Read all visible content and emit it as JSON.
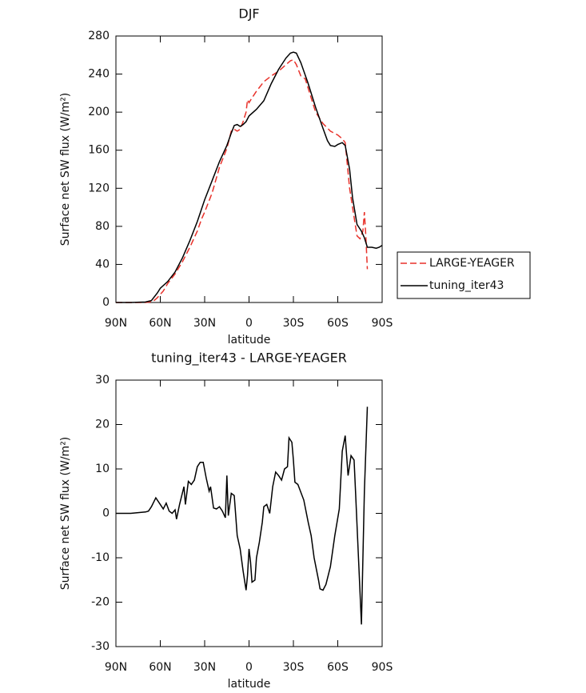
{
  "chart_data": [
    {
      "type": "line",
      "title": "DJF",
      "xlabel": "latitude",
      "ylabel": "Surface net SW flux (W/m²)",
      "xlim": [
        90,
        -90
      ],
      "ylim": [
        0,
        280
      ],
      "xticks": [
        {
          "value": 90,
          "label": "90N"
        },
        {
          "value": 60,
          "label": "60N"
        },
        {
          "value": 30,
          "label": "30N"
        },
        0,
        {
          "value": -30,
          "label": "30S"
        },
        {
          "value": -60,
          "label": "60S"
        },
        {
          "value": -90,
          "label": "90S"
        }
      ],
      "yticks": [
        0,
        40,
        80,
        120,
        160,
        200,
        240,
        280
      ],
      "legend": "right",
      "series": [
        {
          "name": "LARGE-YEAGER",
          "color": "#e8312a",
          "dash": true,
          "x": [
            90,
            70,
            65,
            62,
            58,
            55,
            50,
            45,
            40,
            35,
            32,
            30,
            25,
            20,
            15,
            12,
            10,
            8,
            6,
            4,
            2,
            1,
            0,
            -2,
            -5,
            -10,
            -15,
            -20,
            -25,
            -28,
            -30,
            -32,
            -35,
            -38,
            -42,
            -45,
            -50,
            -55,
            -60,
            -63,
            -65,
            -68,
            -70,
            -73,
            -75,
            -77,
            -78,
            -79,
            -80
          ],
          "values": [
            0,
            0,
            1,
            5,
            12,
            20,
            30,
            43,
            58,
            75,
            88,
            95,
            115,
            142,
            162,
            180,
            182,
            180,
            182,
            190,
            200,
            213,
            210,
            215,
            222,
            232,
            238,
            243,
            250,
            254,
            255,
            250,
            238,
            235,
            215,
            200,
            188,
            180,
            176,
            172,
            168,
            120,
            100,
            70,
            67,
            75,
            95,
            70,
            35
          ]
        },
        {
          "name": "tuning_iter43",
          "color": "#000000",
          "dash": false,
          "x": [
            90,
            80,
            70,
            66,
            62,
            60,
            55,
            50,
            45,
            40,
            35,
            30,
            25,
            20,
            15,
            12,
            10,
            8,
            6,
            4,
            2,
            0,
            -5,
            -10,
            -15,
            -20,
            -25,
            -28,
            -30,
            -32,
            -35,
            -40,
            -45,
            -50,
            -53,
            -55,
            -58,
            -60,
            -63,
            -65,
            -68,
            -70,
            -73,
            -76,
            -78,
            -80,
            -83,
            -86,
            -88,
            -90
          ],
          "values": [
            0,
            0,
            0.5,
            2,
            10,
            15,
            22,
            32,
            47,
            65,
            85,
            108,
            128,
            148,
            165,
            178,
            186,
            187,
            185,
            187,
            190,
            196,
            203,
            212,
            230,
            245,
            257,
            262,
            263,
            262,
            252,
            230,
            205,
            183,
            170,
            165,
            164,
            166,
            168,
            165,
            140,
            110,
            82,
            75,
            68,
            58,
            58,
            57,
            58,
            60
          ]
        }
      ]
    },
    {
      "type": "line",
      "title": "tuning_iter43 - LARGE-YEAGER",
      "xlabel": "latitude",
      "ylabel": "Surface net SW flux (W/m²)",
      "xlim": [
        90,
        -90
      ],
      "ylim": [
        -30,
        30
      ],
      "xticks": [
        {
          "value": 90,
          "label": "90N"
        },
        {
          "value": 60,
          "label": "60N"
        },
        {
          "value": 30,
          "label": "30N"
        },
        0,
        {
          "value": -30,
          "label": "30S"
        },
        {
          "value": -60,
          "label": "60S"
        },
        {
          "value": -90,
          "label": "90S"
        }
      ],
      "yticks": [
        -30,
        -20,
        -10,
        0,
        10,
        20,
        30
      ],
      "series": [
        {
          "color": "#000000",
          "dash": false,
          "x": [
            90,
            80,
            70,
            68,
            66,
            63,
            60,
            58,
            56,
            54,
            52,
            50,
            49,
            47,
            44,
            43,
            41,
            39,
            37,
            35,
            33,
            31,
            29,
            27,
            26,
            24,
            22,
            20,
            18,
            16,
            15,
            14,
            12,
            10,
            8,
            6,
            4,
            2,
            1,
            0,
            -1,
            -2,
            -4,
            -5,
            -7,
            -9,
            -10,
            -12,
            -14,
            -16,
            -18,
            -20,
            -22,
            -24,
            -26,
            -27,
            -29,
            -30,
            -31,
            -33,
            -37,
            -40,
            -42,
            -44,
            -47,
            -48,
            -50,
            -52,
            -55,
            -58,
            -61,
            -63,
            -65,
            -67,
            -69,
            -71,
            -72,
            -74,
            -76,
            -78,
            -80
          ],
          "values": [
            0,
            0,
            0.3,
            0.5,
            1.5,
            3.5,
            2,
            1,
            2.3,
            0.5,
            0,
            0.8,
            -1.3,
            2,
            6,
            2,
            7.2,
            6.5,
            7.5,
            10.5,
            11.5,
            11.5,
            8,
            5,
            6,
            1.2,
            1,
            1.5,
            0.5,
            -1,
            8.5,
            -0.5,
            4.5,
            4,
            -5,
            -8,
            -13,
            -17.3,
            -14,
            -8,
            -11,
            -15.5,
            -15,
            -10,
            -6.5,
            -2,
            1.5,
            2,
            0,
            6,
            9.3,
            8.5,
            7.5,
            10,
            10.5,
            17,
            16,
            12,
            7,
            6.5,
            3,
            -2,
            -5,
            -10,
            -15,
            -17,
            -17.3,
            -16,
            -12,
            -5,
            1,
            14,
            17.5,
            8.5,
            13,
            12,
            5,
            -10,
            -25,
            5,
            24
          ]
        }
      ]
    }
  ]
}
